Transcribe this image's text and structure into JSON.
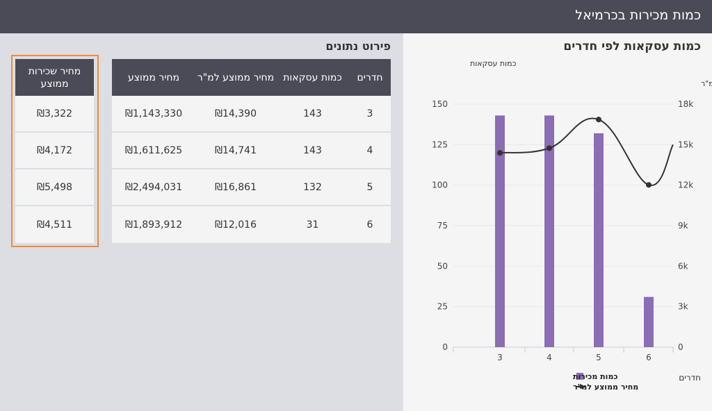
{
  "header": {
    "title": "כמות מכירות בכרמיאל"
  },
  "chart_panel": {
    "title": "כמות עסקאות לפי חדרים"
  },
  "details": {
    "title": "פירוט נתונים"
  },
  "table": {
    "headers": [
      "חדרים",
      "כמות עסקאות",
      "מחיר ממוצע למ\"ר",
      "מחיר ממוצע"
    ],
    "rows": [
      [
        "3",
        "143",
        "₪14,390",
        "₪1,143,330"
      ],
      [
        "4",
        "143",
        "₪14,741",
        "₪1,611,625"
      ],
      [
        "5",
        "132",
        "₪16,861",
        "₪2,494,031"
      ],
      [
        "6",
        "31",
        "₪12,016",
        "₪1,893,912"
      ]
    ]
  },
  "rent": {
    "header": "מחיר שכירות ממוצע",
    "values": [
      "₪3,322",
      "₪4,172",
      "₪5,498",
      "₪4,511"
    ]
  },
  "colors": {
    "bar": "#8b6db3",
    "line": "#333333",
    "header_bg": "#4b4b57",
    "highlight": "#f18a38"
  },
  "chart_data": {
    "type": "bar",
    "categories": [
      "3",
      "4",
      "5",
      "6"
    ],
    "series": [
      {
        "name": "כמות מכירות",
        "type": "bar",
        "axis": "left",
        "values": [
          143,
          143,
          132,
          31
        ]
      },
      {
        "name": "מחיר ממוצע למ\"ר",
        "type": "line",
        "axis": "right",
        "values": [
          14390,
          14741,
          16861,
          12016
        ]
      }
    ],
    "xlabel": "חדרים",
    "ylabel_left": "כמות עסקאות",
    "ylabel_right": "מחיר ממוצע למ\"ר",
    "ylim_left": [
      0,
      150
    ],
    "ylim_right": [
      0,
      18000
    ],
    "yticks_left": [
      "0",
      "25",
      "50",
      "75",
      "100",
      "125",
      "150"
    ],
    "yticks_right": [
      "0",
      "3k",
      "6k",
      "9k",
      "12k",
      "15k",
      "18k"
    ],
    "legend_position": "bottom",
    "grid": true
  }
}
